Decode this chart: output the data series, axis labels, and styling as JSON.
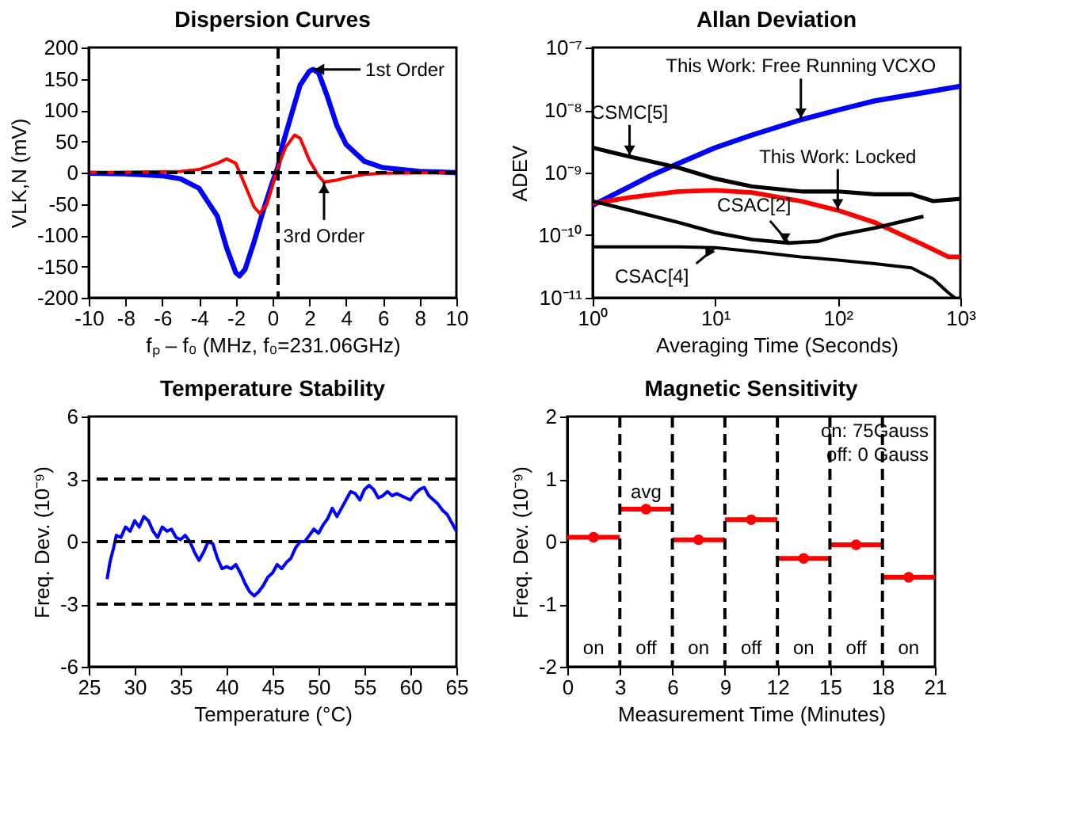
{
  "chart_data": [
    {
      "type": "line",
      "title": "Dispersion Curves",
      "xlabel": "fₚ – f₀ (MHz, f₀=231.06GHz)",
      "ylabel": "VLK,N (mV)",
      "xlim": [
        -10,
        10
      ],
      "xticks": [
        -10,
        -8,
        -6,
        -4,
        -2,
        0,
        2,
        4,
        6,
        8,
        10
      ],
      "ylim": [
        -200,
        200
      ],
      "yticks": [
        -200,
        -150,
        -100,
        -50,
        0,
        50,
        100,
        150,
        200
      ],
      "series": [
        {
          "name": "1st Order",
          "color": "#0000ff",
          "x": [
            -10,
            -8,
            -6,
            -5,
            -4,
            -3,
            -2.5,
            -2,
            -1.8,
            -1.5,
            -1,
            -0.5,
            0,
            0.3,
            0.5,
            1,
            1.5,
            2,
            2.2,
            2.5,
            3,
            3.5,
            4,
            5,
            6,
            8,
            10
          ],
          "values": [
            -1,
            -2,
            -5,
            -10,
            -25,
            -70,
            -120,
            -160,
            -165,
            -155,
            -110,
            -60,
            -15,
            10,
            40,
            90,
            140,
            162,
            165,
            160,
            120,
            75,
            45,
            18,
            8,
            2,
            0
          ]
        },
        {
          "name": "3rd Order",
          "color": "#ff0000",
          "x": [
            -10,
            -5,
            -4,
            -3,
            -2.5,
            -2,
            -1.5,
            -1,
            -0.7,
            -0.3,
            0,
            0.3,
            0.7,
            1.2,
            1.5,
            2,
            2.5,
            2.8,
            3.5,
            4,
            5,
            6,
            10
          ],
          "values": [
            0,
            2,
            5,
            15,
            22,
            15,
            -20,
            -55,
            -65,
            -50,
            -20,
            10,
            40,
            60,
            55,
            20,
            -5,
            -15,
            -12,
            -8,
            -3,
            -1,
            0
          ]
        }
      ],
      "ref_lines": [
        {
          "axis": "x",
          "value": 0.3,
          "line_style": "dashed",
          "color": "#000000"
        },
        {
          "axis": "y",
          "value": 0,
          "line_style": "dashed",
          "color": "#000000"
        }
      ]
    },
    {
      "type": "line",
      "title": "Allan Deviation",
      "xlabel": "Averaging Time (Seconds)",
      "ylabel": "ADEV",
      "log": "xy",
      "xlim": [
        1,
        1000
      ],
      "xticks": [
        {
          "value": 1,
          "label": "10⁰"
        },
        {
          "value": 10,
          "label": "10¹"
        },
        {
          "value": 100,
          "label": "10²"
        },
        {
          "value": 1000,
          "label": "10³"
        }
      ],
      "ylim": [
        1e-11,
        1e-07
      ],
      "yticks": [
        {
          "value": 1e-11,
          "label": "10⁻¹¹"
        },
        {
          "value": 1e-10,
          "label": "10⁻¹⁰"
        },
        {
          "value": 1e-09,
          "label": "10⁻⁹"
        },
        {
          "value": 1e-08,
          "label": "10⁻⁸"
        },
        {
          "value": 1e-07,
          "label": "10⁻⁷"
        }
      ],
      "series": [
        {
          "name": "This Work: Free Running VCXO",
          "color": "#0000ff",
          "x": [
            1,
            2,
            3,
            5,
            10,
            20,
            50,
            100,
            200,
            500,
            1000
          ],
          "values": [
            3e-10,
            6e-10,
            9e-10,
            1.4e-09,
            2.5e-09,
            4e-09,
            7e-09,
            1e-08,
            1.4e-08,
            1.9e-08,
            2.4e-08
          ]
        },
        {
          "name": "This Work: Locked",
          "color": "#ff0000",
          "x": [
            1,
            2,
            5,
            10,
            20,
            50,
            100,
            200,
            500,
            800,
            1000
          ],
          "values": [
            3.2e-10,
            4e-10,
            5e-10,
            5.2e-10,
            4.8e-10,
            3.5e-10,
            2.5e-10,
            1.6e-10,
            7e-11,
            4.5e-11,
            4.5e-11
          ]
        },
        {
          "name": "CSMC[5]",
          "color": "#000000",
          "x": [
            1,
            2,
            5,
            10,
            20,
            50,
            100,
            200,
            400,
            600,
            1000
          ],
          "values": [
            2.5e-09,
            1.8e-09,
            1.2e-09,
            8e-10,
            6e-10,
            5e-10,
            5e-10,
            4.5e-10,
            4.5e-10,
            3.5e-10,
            3.8e-10
          ]
        },
        {
          "name": "CSAC[2]",
          "color": "#000000",
          "x": [
            1,
            2,
            5,
            10,
            20,
            40,
            70,
            100,
            200,
            500
          ],
          "values": [
            3.5e-10,
            2.5e-10,
            1.6e-10,
            1.1e-10,
            8.5e-11,
            7.5e-11,
            8e-11,
            1e-10,
            1.3e-10,
            2e-10
          ]
        },
        {
          "name": "CSAC[4]",
          "color": "#000000",
          "x": [
            1,
            5,
            10,
            20,
            50,
            100,
            200,
            400,
            600,
            800,
            900
          ],
          "values": [
            6.5e-11,
            6.5e-11,
            6.3e-11,
            5.5e-11,
            4.5e-11,
            4e-11,
            3.5e-11,
            3e-11,
            2e-11,
            1.2e-11,
            1e-11
          ]
        }
      ]
    },
    {
      "type": "line",
      "title": "Temperature Stability",
      "xlabel": "Temperature (°C)",
      "ylabel": "Freq. Dev. (10⁻⁹)",
      "xlim": [
        25,
        65
      ],
      "xticks": [
        25,
        30,
        35,
        40,
        45,
        50,
        55,
        60,
        65
      ],
      "ylim": [
        -6,
        6
      ],
      "yticks": [
        -6,
        -3,
        0,
        3,
        6
      ],
      "series": [
        {
          "color": "#0000ff",
          "x": [
            27,
            27.3,
            27.7,
            28,
            28.5,
            29,
            29.5,
            30,
            30.5,
            31,
            31.5,
            32,
            32.5,
            33,
            33.5,
            34,
            34.5,
            35,
            35.5,
            36,
            36.5,
            37,
            37.5,
            38,
            38.5,
            39,
            39.5,
            40,
            40.5,
            41,
            41.5,
            42,
            42.5,
            43,
            43.5,
            44,
            44.5,
            45,
            45.5,
            46,
            46.5,
            47,
            47.5,
            48,
            48.5,
            49,
            49.5,
            50,
            50.5,
            51,
            51.5,
            52,
            52.5,
            53,
            53.5,
            54,
            54.5,
            55,
            55.5,
            56,
            56.5,
            57,
            57.5,
            58,
            58.5,
            59,
            59.5,
            60,
            60.5,
            61,
            61.5,
            62,
            62.5,
            63,
            63.5,
            64,
            64.5,
            65
          ],
          "values": [
            -1.8,
            -1,
            -0.3,
            0.3,
            0.2,
            0.7,
            0.5,
            1,
            0.7,
            1.2,
            1,
            0.5,
            0.2,
            0.7,
            0.5,
            0.6,
            0.2,
            0.1,
            0.3,
            0,
            -0.5,
            -0.9,
            -0.5,
            0,
            -0.1,
            -0.8,
            -1.3,
            -1.2,
            -1.3,
            -1.1,
            -1.5,
            -2,
            -2.4,
            -2.6,
            -2.4,
            -2.1,
            -1.7,
            -1.5,
            -1.1,
            -1.3,
            -1,
            -0.8,
            -0.3,
            0,
            0,
            0.3,
            0.6,
            0.4,
            0.8,
            1.1,
            1.6,
            1.2,
            1.6,
            2,
            2.4,
            2.3,
            2,
            2.5,
            2.7,
            2.5,
            2.1,
            2.2,
            2.4,
            2.2,
            2.3,
            2.2,
            2.1,
            2,
            2.3,
            2.5,
            2.6,
            2.2,
            2,
            1.8,
            1.5,
            1.3,
            0.9,
            0.5
          ]
        }
      ],
      "ref_lines": [
        {
          "axis": "y",
          "value": 3,
          "line_style": "dashed",
          "color": "#000000"
        },
        {
          "axis": "y",
          "value": 0,
          "line_style": "dashed",
          "color": "#000000"
        },
        {
          "axis": "y",
          "value": -3,
          "line_style": "dashed",
          "color": "#000000"
        }
      ]
    },
    {
      "type": "scatter",
      "marker": "circle",
      "title": "Magnetic Sensitivity",
      "xlabel": "Measurement Time (Minutes)",
      "ylabel": "Freq. Dev. (10⁻⁹)",
      "xlim": [
        0,
        21
      ],
      "xticks": [
        0,
        3,
        6,
        9,
        12,
        15,
        18,
        21
      ],
      "ylim": [
        -2,
        2
      ],
      "yticks": [
        -2,
        -1,
        0,
        1,
        2
      ],
      "series": [
        {
          "color": "#ff0000",
          "x": [
            1.5,
            4.5,
            7.5,
            10.5,
            13.5,
            16.5,
            19.5
          ],
          "values": [
            0.07,
            0.52,
            0.03,
            0.35,
            -0.27,
            -0.05,
            -0.57
          ],
          "xerrors": [
            1.5,
            1.5,
            1.5,
            1.5,
            1.5,
            1.5,
            1.5
          ]
        }
      ],
      "ref_lines": [
        {
          "axis": "x",
          "value": 3,
          "line_style": "dashed",
          "color": "#000000"
        },
        {
          "axis": "x",
          "value": 6,
          "line_style": "dashed",
          "color": "#000000"
        },
        {
          "axis": "x",
          "value": 9,
          "line_style": "dashed",
          "color": "#000000"
        },
        {
          "axis": "x",
          "value": 12,
          "line_style": "dashed",
          "color": "#000000"
        },
        {
          "axis": "x",
          "value": 15,
          "line_style": "dashed",
          "color": "#000000"
        },
        {
          "axis": "x",
          "value": 18,
          "line_style": "dashed",
          "color": "#000000"
        }
      ],
      "annotations": [
        "on: 75Gauss",
        "off:  0 Gauss",
        "avg",
        "on",
        "off",
        "on",
        "off",
        "on",
        "off",
        "on"
      ]
    }
  ]
}
